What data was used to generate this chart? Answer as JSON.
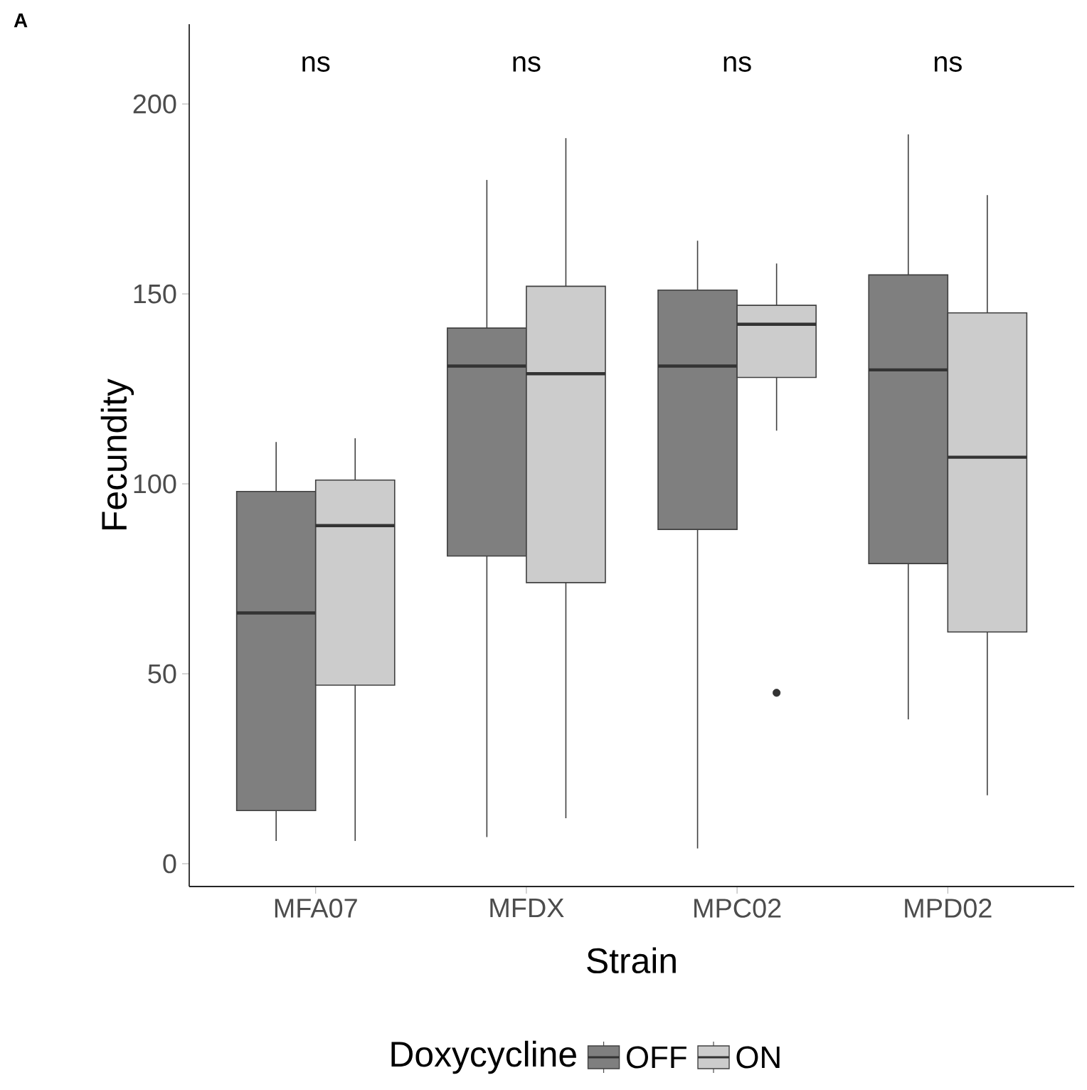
{
  "chart_data": {
    "type": "box",
    "xlabel": "Strain",
    "ylabel": "Fecundity",
    "legend_title": "Doxycycline",
    "legend": "bottom",
    "grid": false,
    "categories": [
      "MFA07",
      "MFDX",
      "MPC02",
      "MPD02"
    ],
    "ylim": [
      -6,
      221
    ],
    "yticks": [
      0,
      50,
      100,
      150,
      200
    ],
    "series": [
      {
        "name": "OFF",
        "color": "#7f7f7f",
        "boxes": [
          {
            "low": 6,
            "q1": 14,
            "median": 66,
            "q3": 98,
            "high": 111
          },
          {
            "low": 7,
            "q1": 81,
            "median": 131,
            "q3": 141,
            "high": 180
          },
          {
            "low": 4,
            "q1": 88,
            "median": 131,
            "q3": 151,
            "high": 164
          },
          {
            "low": 38,
            "q1": 79,
            "median": 130,
            "q3": 155,
            "high": 192
          }
        ]
      },
      {
        "name": "ON",
        "color": "#cccccc",
        "boxes": [
          {
            "low": 6,
            "q1": 47,
            "median": 89,
            "q3": 101,
            "high": 112
          },
          {
            "low": 12,
            "q1": 74,
            "median": 129,
            "q3": 152,
            "high": 191
          },
          {
            "low": 114,
            "q1": 128,
            "median": 142,
            "q3": 147,
            "high": 158,
            "outliers": [
              45
            ]
          },
          {
            "low": 18,
            "q1": 61,
            "median": 107,
            "q3": 145,
            "high": 176
          }
        ]
      }
    ],
    "annotations": [
      "ns",
      "ns",
      "ns",
      "ns",
      "A"
    ]
  }
}
